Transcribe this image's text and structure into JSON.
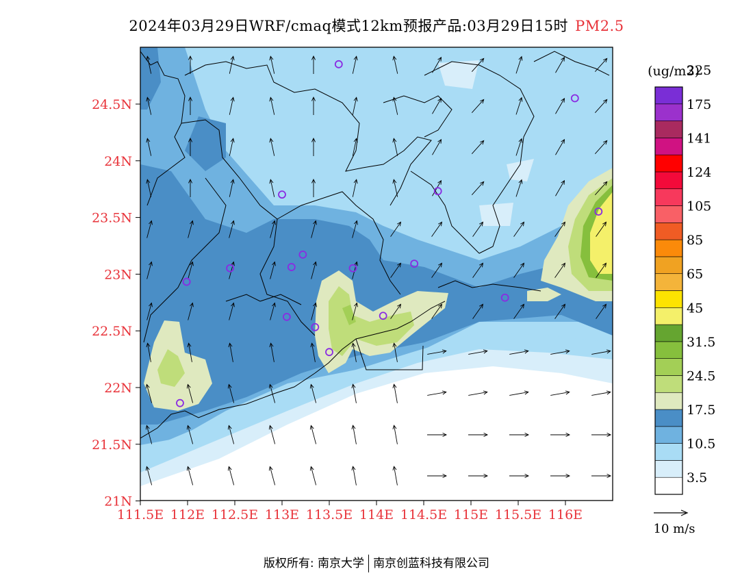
{
  "title": {
    "main": "2024年03月29日WRF/cmaq模式12km预报产品:03月29日15时",
    "variable": "PM2.5"
  },
  "map": {
    "x_ticks": [
      "111.5E",
      "112E",
      "112.5E",
      "113E",
      "113.5E",
      "114E",
      "114.5E",
      "115E",
      "115.5E",
      "116E"
    ],
    "y_ticks": [
      "24.5N",
      "24N",
      "23.5N",
      "23N",
      "22.5N",
      "22N",
      "21.5N",
      "21N"
    ],
    "tick_color": "#e8333a",
    "stations": [
      {
        "lon": 113.6,
        "lat": 24.85
      },
      {
        "lon": 116.1,
        "lat": 24.55
      },
      {
        "lon": 113.0,
        "lat": 23.7
      },
      {
        "lon": 114.65,
        "lat": 23.73
      },
      {
        "lon": 116.35,
        "lat": 23.55
      },
      {
        "lon": 112.45,
        "lat": 23.05
      },
      {
        "lon": 113.22,
        "lat": 23.17
      },
      {
        "lon": 113.1,
        "lat": 23.06
      },
      {
        "lon": 113.75,
        "lat": 23.05
      },
      {
        "lon": 114.4,
        "lat": 23.09
      },
      {
        "lon": 111.99,
        "lat": 22.93
      },
      {
        "lon": 113.05,
        "lat": 22.62
      },
      {
        "lon": 113.35,
        "lat": 22.53
      },
      {
        "lon": 114.07,
        "lat": 22.63
      },
      {
        "lon": 115.36,
        "lat": 22.79
      },
      {
        "lon": 113.5,
        "lat": 22.31
      },
      {
        "lon": 111.92,
        "lat": 21.86
      }
    ]
  },
  "legend": {
    "unit": "(ug/m3)",
    "colors": [
      "#ffffff",
      "#d8eefa",
      "#a9dcf5",
      "#6fb2e0",
      "#4a8ec6",
      "#dfe9bf",
      "#bfdd7a",
      "#a3cf56",
      "#86bf3d",
      "#65a530",
      "#f4f06a",
      "#fde301",
      "#f4b43a",
      "#f0a222",
      "#fb8a0a",
      "#f05c24",
      "#f96066",
      "#f7395c",
      "#f30a3a",
      "#ff0000",
      "#d01282",
      "#a92a5f",
      "#9b31cc",
      "#7a2ed6"
    ],
    "labels": [
      {
        "text": "3.5",
        "index": 1
      },
      {
        "text": "10.5",
        "index": 3
      },
      {
        "text": "17.5",
        "index": 5
      },
      {
        "text": "24.5",
        "index": 7
      },
      {
        "text": "31.5",
        "index": 9
      },
      {
        "text": "45",
        "index": 11
      },
      {
        "text": "65",
        "index": 13
      },
      {
        "text": "85",
        "index": 15
      },
      {
        "text": "105",
        "index": 17
      },
      {
        "text": "124",
        "index": 19
      },
      {
        "text": "141",
        "index": 21
      },
      {
        "text": "175",
        "index": 23
      },
      {
        "text": "225",
        "index": 25
      }
    ],
    "wind_label": "10 m/s"
  },
  "footer": {
    "left": "版权所有: 南京大学",
    "right": "南京创蓝科技有限公司"
  }
}
